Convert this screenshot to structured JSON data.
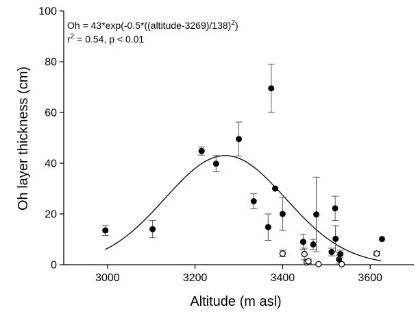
{
  "chart_data": {
    "type": "scatter",
    "xlabel": "Altitude (m asl)",
    "ylabel": "Oh layer thickness (cm)",
    "xlim": [
      2900,
      3700
    ],
    "ylim": [
      0,
      100
    ],
    "xticks": [
      3000,
      3200,
      3400,
      3600
    ],
    "yticks": [
      0,
      20,
      40,
      60,
      80,
      100
    ],
    "grid": false,
    "annotation": {
      "equation_base": "Oh = 43*exp(-0.5*((altitude-3269)/138)",
      "equation_exp": "2",
      "equation_close": ")",
      "r2_prefix": "r",
      "r2_exp": "2",
      "r2_rest": " = 0.54, p < 0.01"
    },
    "fit": {
      "a": 43,
      "x0": 3269,
      "b": 138,
      "x_from": 2995,
      "x_to": 3625
    },
    "series": [
      {
        "marker": "filled-circle",
        "points": [
          {
            "x": 2995,
            "y": 13.5,
            "err": 2
          },
          {
            "x": 3103,
            "y": 14,
            "err": 3.4
          },
          {
            "x": 3215,
            "y": 44.8,
            "err": 1.6
          },
          {
            "x": 3248,
            "y": 39.8,
            "err": 3.2
          },
          {
            "x": 3300,
            "y": 49.5,
            "err": 6.7
          },
          {
            "x": 3334,
            "y": 25,
            "err": 3
          },
          {
            "x": 3367,
            "y": 14.8,
            "err": 5.2
          },
          {
            "x": 3374,
            "y": 69.5,
            "err": 9.5
          },
          {
            "x": 3383,
            "y": 30,
            "err": 0
          },
          {
            "x": 3400,
            "y": 20,
            "err": 6.5
          },
          {
            "x": 3447,
            "y": 9,
            "err": 3
          },
          {
            "x": 3470,
            "y": 8,
            "err": 2
          },
          {
            "x": 3477,
            "y": 19.8,
            "err": 14.7
          },
          {
            "x": 3512,
            "y": 5,
            "err": 1.5
          },
          {
            "x": 3520,
            "y": 22.2,
            "err": 4.8
          },
          {
            "x": 3521,
            "y": 10.2,
            "err": 5.2
          },
          {
            "x": 3529,
            "y": 2.1,
            "err": 1.5
          },
          {
            "x": 3532,
            "y": 4.2,
            "err": 1.5
          },
          {
            "x": 3627,
            "y": 10.1,
            "err": 0
          }
        ]
      },
      {
        "marker": "open-circle",
        "points": [
          {
            "x": 3400,
            "y": 4.4,
            "err": 1.3
          },
          {
            "x": 3450,
            "y": 4.2,
            "err": 2.3
          },
          {
            "x": 3455,
            "y": 0.9,
            "err": 1.2
          },
          {
            "x": 3459,
            "y": 1.3,
            "err": 0.9
          },
          {
            "x": 3482,
            "y": 0.2,
            "err": 0
          },
          {
            "x": 3535,
            "y": 0.2,
            "err": 0
          },
          {
            "x": 3615,
            "y": 4.4,
            "err": 0.8
          }
        ]
      }
    ]
  }
}
